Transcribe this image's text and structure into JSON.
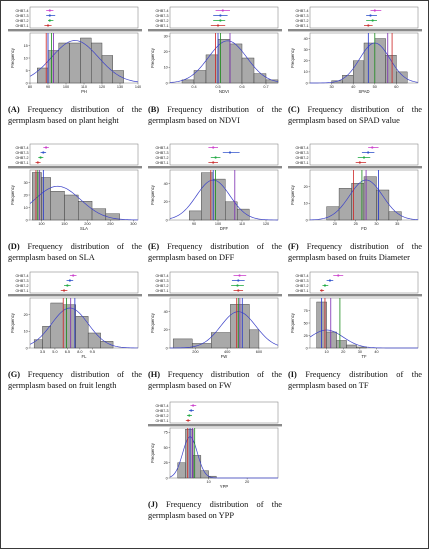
{
  "legend_entries": [
    "OHB7-4",
    "OHB7-3",
    "OHB7-2",
    "OHB7-1"
  ],
  "ylabel": "Frequency",
  "chart_data": [
    {
      "id": "A",
      "type": "histogram",
      "caption_letter": "(A)",
      "caption_text": "Frequency distribution of the germplasm based on plant height",
      "xlabel": "PH",
      "xlim": [
        80,
        140
      ],
      "ylim": [
        0,
        20
      ],
      "xticks": [
        "80",
        "90",
        "100",
        "110",
        "120",
        "130",
        "140"
      ],
      "yticks": [
        "0",
        "5",
        "10",
        "15"
      ],
      "bins": [
        {
          "x0": 84,
          "x1": 90,
          "count": 6
        },
        {
          "x0": 90,
          "x1": 96,
          "count": 13
        },
        {
          "x0": 96,
          "x1": 102,
          "count": 16
        },
        {
          "x0": 102,
          "x1": 108,
          "count": 16
        },
        {
          "x0": 108,
          "x1": 114,
          "count": 18
        },
        {
          "x0": 114,
          "x1": 120,
          "count": 16
        },
        {
          "x0": 120,
          "x1": 126,
          "count": 11
        },
        {
          "x0": 126,
          "x1": 132,
          "count": 5
        }
      ],
      "curve": {
        "mean": 105,
        "sd": 13,
        "peak": 17
      },
      "vlines": [
        {
          "x": 89,
          "color": "#cc2222"
        },
        {
          "x": 90,
          "color": "#2233cc"
        },
        {
          "x": 92,
          "color": "#1a8a1a"
        },
        {
          "x": 93,
          "color": "#7a2ab0"
        }
      ],
      "forest": [
        {
          "x": 91,
          "lo": 89,
          "hi": 93
        },
        {
          "x": 91,
          "lo": 89,
          "hi": 94
        },
        {
          "x": 91,
          "lo": 90,
          "hi": 93
        },
        {
          "x": 90,
          "lo": 88,
          "hi": 92
        }
      ]
    },
    {
      "id": "B",
      "type": "histogram",
      "caption_letter": "(B)",
      "caption_text": "Frequency distribution of the germplasm based on NDVI",
      "xlabel": "NDVI",
      "xlim": [
        0.3,
        0.75
      ],
      "ylim": [
        0,
        32
      ],
      "xticks": [
        "0.4",
        "0.5",
        "0.6",
        "0.7"
      ],
      "yticks": [
        "0",
        "10",
        "20",
        "30"
      ],
      "bins": [
        {
          "x0": 0.35,
          "x1": 0.4,
          "count": 2
        },
        {
          "x0": 0.4,
          "x1": 0.45,
          "count": 8
        },
        {
          "x0": 0.45,
          "x1": 0.5,
          "count": 18
        },
        {
          "x0": 0.5,
          "x1": 0.55,
          "count": 28
        },
        {
          "x0": 0.55,
          "x1": 0.6,
          "count": 25
        },
        {
          "x0": 0.6,
          "x1": 0.65,
          "count": 16
        },
        {
          "x0": 0.65,
          "x1": 0.7,
          "count": 6
        },
        {
          "x0": 0.7,
          "x1": 0.75,
          "count": 2
        }
      ],
      "curve": {
        "mean": 0.54,
        "sd": 0.08,
        "peak": 27
      },
      "vlines": [
        {
          "x": 0.49,
          "color": "#cc2222"
        },
        {
          "x": 0.5,
          "color": "#2233cc"
        },
        {
          "x": 0.51,
          "color": "#1a8a1a"
        },
        {
          "x": 0.55,
          "color": "#7a2ab0"
        }
      ],
      "forest": [
        {
          "x": 0.52,
          "lo": 0.49,
          "hi": 0.55
        },
        {
          "x": 0.51,
          "lo": 0.48,
          "hi": 0.54
        },
        {
          "x": 0.51,
          "lo": 0.48,
          "hi": 0.53
        },
        {
          "x": 0.5,
          "lo": 0.47,
          "hi": 0.53
        }
      ]
    },
    {
      "id": "C",
      "type": "histogram",
      "caption_letter": "(C)",
      "caption_text": "Frequency distribution of the germplasm based on SPAD value",
      "xlabel": "SPAD",
      "xlim": [
        20,
        70
      ],
      "ylim": [
        0,
        45
      ],
      "xticks": [
        "30",
        "40",
        "50",
        "60"
      ],
      "yticks": [
        "0",
        "10",
        "20",
        "30",
        "40"
      ],
      "bins": [
        {
          "x0": 30,
          "x1": 35,
          "count": 2
        },
        {
          "x0": 35,
          "x1": 40,
          "count": 7
        },
        {
          "x0": 40,
          "x1": 45,
          "count": 20
        },
        {
          "x0": 45,
          "x1": 50,
          "count": 36
        },
        {
          "x0": 50,
          "x1": 55,
          "count": 40
        },
        {
          "x0": 55,
          "x1": 60,
          "count": 25
        },
        {
          "x0": 60,
          "x1": 65,
          "count": 10
        }
      ],
      "curve": {
        "mean": 50,
        "sd": 7,
        "peak": 36
      },
      "vlines": [
        {
          "x": 47,
          "color": "#2233cc"
        },
        {
          "x": 50,
          "color": "#1a8a1a"
        },
        {
          "x": 56,
          "color": "#7a2ab0"
        },
        {
          "x": 58,
          "color": "#cc2222"
        }
      ],
      "forest": [
        {
          "x": 50,
          "lo": 48,
          "hi": 53
        },
        {
          "x": 48,
          "lo": 46,
          "hi": 51
        },
        {
          "x": 49,
          "lo": 46,
          "hi": 51
        },
        {
          "x": 47,
          "lo": 45,
          "hi": 49
        }
      ]
    },
    {
      "id": "D",
      "type": "histogram",
      "caption_letter": "(D)",
      "caption_text": "Frequency distribution of the germplasm based on SLA",
      "xlabel": "SLA",
      "xlim": [
        75,
        310
      ],
      "ylim": [
        0,
        40
      ],
      "xticks": [
        "100",
        "150",
        "200",
        "250",
        "300"
      ],
      "yticks": [
        "0",
        "10",
        "20",
        "30"
      ],
      "bins": [
        {
          "x0": 80,
          "x1": 100,
          "count": 38
        },
        {
          "x0": 100,
          "x1": 120,
          "count": 34
        },
        {
          "x0": 120,
          "x1": 150,
          "count": 23
        },
        {
          "x0": 150,
          "x1": 180,
          "count": 20
        },
        {
          "x0": 180,
          "x1": 210,
          "count": 15
        },
        {
          "x0": 210,
          "x1": 240,
          "count": 9
        },
        {
          "x0": 240,
          "x1": 270,
          "count": 5
        }
      ],
      "curve": {
        "mean": 135,
        "sd": 50,
        "peak": 27
      },
      "vlines": [
        {
          "x": 88,
          "color": "#cc2222"
        },
        {
          "x": 92,
          "color": "#1a8a1a"
        },
        {
          "x": 96,
          "color": "#7a2ab0"
        },
        {
          "x": 104,
          "color": "#2233cc"
        }
      ],
      "forest": [
        {
          "x": 110,
          "lo": 104,
          "hi": 116
        },
        {
          "x": 104,
          "lo": 98,
          "hi": 110
        },
        {
          "x": 98,
          "lo": 93,
          "hi": 104
        },
        {
          "x": 92,
          "lo": 87,
          "hi": 98
        }
      ]
    },
    {
      "id": "E",
      "type": "histogram",
      "caption_letter": "(E)",
      "caption_text": "Frequency distribution of the germplasm based on DFF",
      "xlabel": "DFF",
      "xlim": [
        80,
        125
      ],
      "ylim": [
        0,
        55
      ],
      "xticks": [
        "90",
        "100",
        "110",
        "120"
      ],
      "yticks": [
        "0",
        "20",
        "40"
      ],
      "bins": [
        {
          "x0": 88,
          "x1": 93,
          "count": 10
        },
        {
          "x0": 93,
          "x1": 98,
          "count": 52
        },
        {
          "x0": 98,
          "x1": 103,
          "count": 45
        },
        {
          "x0": 103,
          "x1": 108,
          "count": 20
        },
        {
          "x0": 108,
          "x1": 113,
          "count": 12
        }
      ],
      "curve": {
        "mean": 98,
        "sd": 7,
        "peak": 44
      },
      "vlines": [
        {
          "x": 97,
          "color": "#cc2222"
        },
        {
          "x": 98,
          "color": "#2233cc"
        },
        {
          "x": 99,
          "color": "#1a8a1a"
        },
        {
          "x": 107,
          "color": "#7a2ab0"
        }
      ],
      "forest": [
        {
          "x": 98,
          "lo": 96,
          "hi": 100
        },
        {
          "x": 105,
          "lo": 102,
          "hi": 109
        },
        {
          "x": 99,
          "lo": 97,
          "hi": 101
        },
        {
          "x": 98,
          "lo": 96,
          "hi": 100
        }
      ]
    },
    {
      "id": "F",
      "type": "histogram",
      "caption_letter": "(F)",
      "caption_text": "Frequency distribution of the germplasm based on fruits Diameter",
      "xlabel": "FD",
      "xlim": [
        14,
        40
      ],
      "ylim": [
        0,
        30
      ],
      "xticks": [
        "20",
        "25",
        "30",
        "35"
      ],
      "yticks": [
        "0",
        "10",
        "20"
      ],
      "bins": [
        {
          "x0": 18,
          "x1": 21,
          "count": 8
        },
        {
          "x0": 21,
          "x1": 24,
          "count": 19
        },
        {
          "x0": 24,
          "x1": 27,
          "count": 22
        },
        {
          "x0": 27,
          "x1": 30,
          "count": 26
        },
        {
          "x0": 30,
          "x1": 33,
          "count": 18
        },
        {
          "x0": 33,
          "x1": 36,
          "count": 5
        }
      ],
      "curve": {
        "mean": 27.5,
        "sd": 4,
        "peak": 24
      },
      "vlines": [
        {
          "x": 24.5,
          "color": "#cc2222"
        },
        {
          "x": 26.5,
          "color": "#1a8a1a"
        },
        {
          "x": 27.5,
          "color": "#7a2ab0"
        },
        {
          "x": 30.5,
          "color": "#2233cc"
        }
      ],
      "forest": [
        {
          "x": 29,
          "lo": 28,
          "hi": 30.5
        },
        {
          "x": 28,
          "lo": 26.5,
          "hi": 29.5
        },
        {
          "x": 27,
          "lo": 25.5,
          "hi": 28.5
        },
        {
          "x": 26,
          "lo": 25,
          "hi": 27.5
        }
      ]
    },
    {
      "id": "G",
      "type": "histogram",
      "caption_letter": "(G)",
      "caption_text": "Frequency distribution of the germplasm based on fruit length",
      "xlabel": "FL",
      "xlim": [
        2,
        15
      ],
      "ylim": [
        0,
        30
      ],
      "xticks": [
        "3.5",
        "5.0",
        "6.5",
        "8.0",
        "9.5"
      ],
      "yticks": [
        "0",
        "10",
        "20"
      ],
      "bins": [
        {
          "x0": 2.5,
          "x1": 3.5,
          "count": 5
        },
        {
          "x0": 3.5,
          "x1": 4.5,
          "count": 13
        },
        {
          "x0": 4.5,
          "x1": 6.0,
          "count": 27
        },
        {
          "x0": 6.0,
          "x1": 7.5,
          "count": 26
        },
        {
          "x0": 7.5,
          "x1": 9.0,
          "count": 19
        },
        {
          "x0": 9.0,
          "x1": 10.5,
          "count": 9
        },
        {
          "x0": 10.5,
          "x1": 12.0,
          "count": 4
        }
      ],
      "curve": {
        "mean": 6.8,
        "sd": 2.2,
        "peak": 24
      },
      "vlines": [
        {
          "x": 6.0,
          "color": "#cc2222"
        },
        {
          "x": 6.4,
          "color": "#1a8a1a"
        },
        {
          "x": 6.9,
          "color": "#7a2ab0"
        },
        {
          "x": 7.4,
          "color": "#2233cc"
        }
      ],
      "forest": [
        {
          "x": 7.2,
          "lo": 6.8,
          "hi": 7.6
        },
        {
          "x": 6.8,
          "lo": 6.4,
          "hi": 7.2
        },
        {
          "x": 6.5,
          "lo": 6.1,
          "hi": 6.9
        },
        {
          "x": 6.1,
          "lo": 5.7,
          "hi": 6.5
        }
      ]
    },
    {
      "id": "H",
      "type": "histogram",
      "caption_letter": "(H)",
      "caption_text": "Frequency distribution of the germplasm based on FW",
      "xlabel": "FW",
      "xlim": [
        40,
        720
      ],
      "ylim": [
        0,
        55
      ],
      "xticks": [
        "200",
        "400",
        "600"
      ],
      "yticks": [
        "0",
        "20",
        "40"
      ],
      "bins": [
        {
          "x0": 60,
          "x1": 180,
          "count": 10
        },
        {
          "x0": 180,
          "x1": 300,
          "count": 5
        },
        {
          "x0": 300,
          "x1": 420,
          "count": 17
        },
        {
          "x0": 420,
          "x1": 540,
          "count": 48
        },
        {
          "x0": 540,
          "x1": 600,
          "count": 20
        }
      ],
      "curve": {
        "mean": 470,
        "sd": 110,
        "peak": 40
      },
      "vlines": [
        {
          "x": 460,
          "color": "#cc2222"
        },
        {
          "x": 470,
          "color": "#1a8a1a"
        },
        {
          "x": 480,
          "color": "#7a2ab0"
        },
        {
          "x": 495,
          "color": "#2233cc"
        }
      ],
      "forest": [
        {
          "x": 478,
          "lo": 440,
          "hi": 520
        },
        {
          "x": 470,
          "lo": 430,
          "hi": 510
        },
        {
          "x": 465,
          "lo": 425,
          "hi": 505
        },
        {
          "x": 470,
          "lo": 440,
          "hi": 500
        }
      ]
    },
    {
      "id": "I",
      "type": "histogram",
      "caption_letter": "(I)",
      "caption_text": "Frequency distribution of the germplasm based on TF",
      "xlabel": "TF",
      "xlim": [
        0,
        65
      ],
      "ylim": [
        0,
        100
      ],
      "xticks": [
        "10",
        "20",
        "30",
        "40"
      ],
      "yticks": [
        "0",
        "25",
        "50",
        "75"
      ],
      "bins": [
        {
          "x0": 4,
          "x1": 10,
          "count": 92
        },
        {
          "x0": 10,
          "x1": 16,
          "count": 32
        },
        {
          "x0": 16,
          "x1": 22,
          "count": 15
        },
        {
          "x0": 22,
          "x1": 28,
          "count": 6
        },
        {
          "x0": 28,
          "x1": 34,
          "count": 2
        }
      ],
      "curve": {
        "mean": 10,
        "sd": 10,
        "peak": 36
      },
      "vlines": [
        {
          "x": 7,
          "color": "#2233cc"
        },
        {
          "x": 9,
          "color": "#cc2222"
        },
        {
          "x": 12.5,
          "color": "#7a2ab0"
        },
        {
          "x": 18,
          "color": "#1a8a1a"
        }
      ],
      "forest": [
        {
          "x": 17,
          "lo": 14,
          "hi": 20
        },
        {
          "x": 12,
          "lo": 10,
          "hi": 14
        },
        {
          "x": 9,
          "lo": 7.5,
          "hi": 11
        },
        {
          "x": 7,
          "lo": 6,
          "hi": 8.5
        }
      ]
    },
    {
      "id": "J",
      "type": "histogram",
      "caption_letter": "(J)",
      "caption_text": "Frequency distribution of the germplasm based on YPP",
      "xlabel": "YPP",
      "xlim": [
        0,
        28
      ],
      "ylim": [
        0,
        82
      ],
      "xticks": [
        "10",
        "20"
      ],
      "yticks": [
        "0",
        "25",
        "50",
        "75"
      ],
      "bins": [
        {
          "x0": 2,
          "x1": 4,
          "count": 25
        },
        {
          "x0": 4,
          "x1": 6,
          "count": 80
        },
        {
          "x0": 6,
          "x1": 8,
          "count": 37
        },
        {
          "x0": 8,
          "x1": 10,
          "count": 12
        },
        {
          "x0": 10,
          "x1": 12,
          "count": 3
        }
      ],
      "curve": {
        "mean": 5.2,
        "sd": 1.9,
        "peak": 68
      },
      "vlines": [
        {
          "x": 4.6,
          "color": "#cc2222"
        },
        {
          "x": 5.2,
          "color": "#2233cc"
        },
        {
          "x": 5.8,
          "color": "#7a2ab0"
        },
        {
          "x": 6.4,
          "color": "#1a8a1a"
        }
      ],
      "forest": [
        {
          "x": 6.0,
          "lo": 5.3,
          "hi": 6.8
        },
        {
          "x": 5.5,
          "lo": 4.9,
          "hi": 6.2
        },
        {
          "x": 5.0,
          "lo": 4.4,
          "hi": 5.7
        },
        {
          "x": 4.7,
          "lo": 4.1,
          "hi": 5.3
        }
      ]
    }
  ]
}
